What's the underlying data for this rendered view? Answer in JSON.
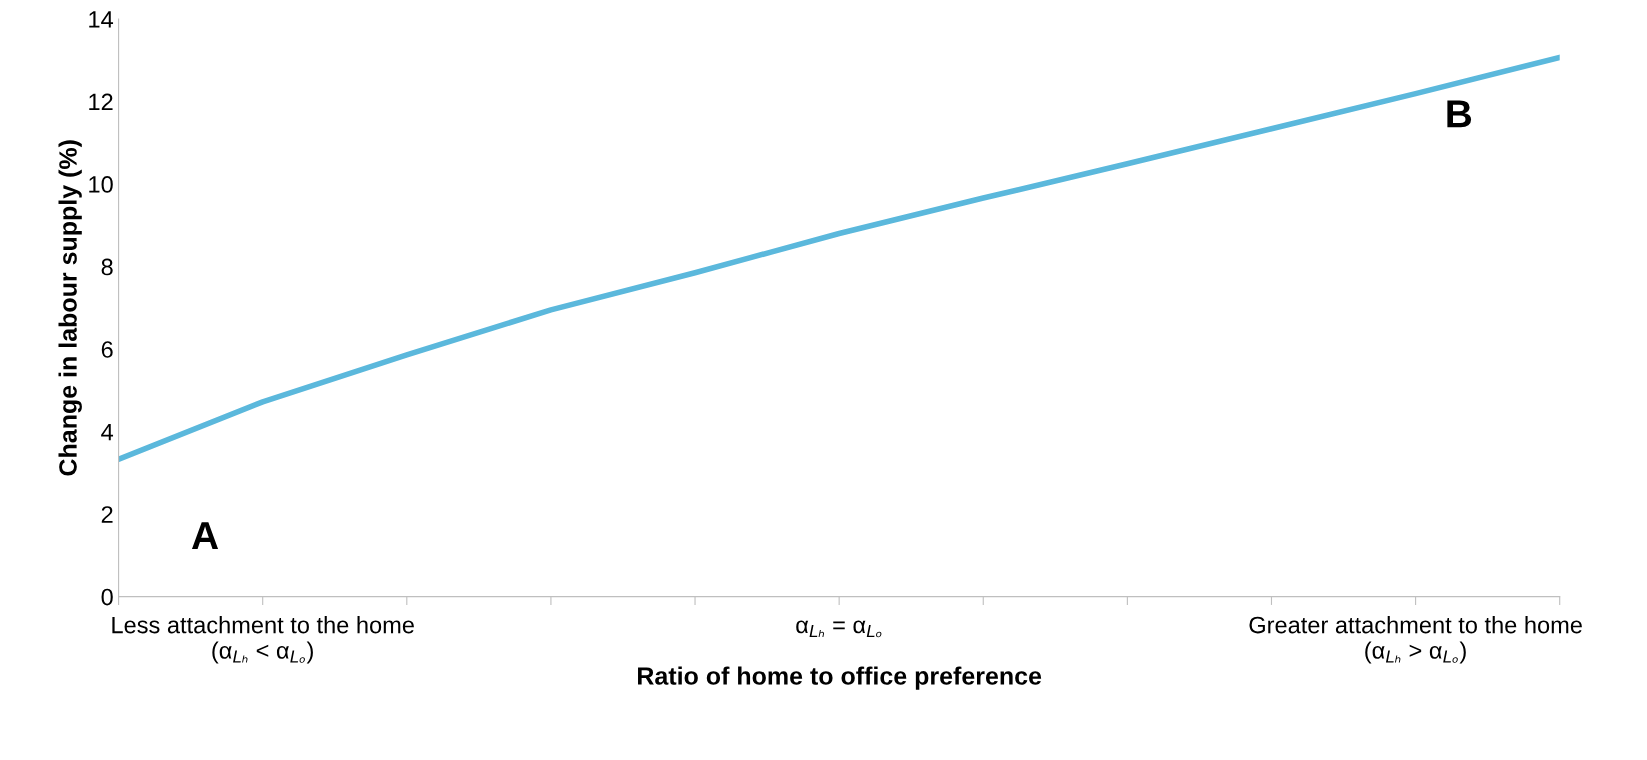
{
  "chart_data": {
    "type": "line",
    "xlabel": "Ratio of home to office preference",
    "ylabel": "Change in labour supply (%)",
    "categories": [
      null,
      "Less attachment to the home\n(α$_{Lₕ}$ < α$_{Lₒ}$)",
      null,
      null,
      null,
      "α$_{Lₕ}$ = α$_{Lₒ}$",
      null,
      null,
      null,
      "Greater attachment to the home\n(α$_{Lₕ}$ > α$_{Lₒ}$)",
      null
    ],
    "series": [
      {
        "color": "#5bb8dc",
        "values": [
          3.33,
          4.72,
          5.86,
          6.95,
          7.85,
          8.8,
          9.66,
          10.49,
          11.34,
          12.19,
          13.07
        ]
      }
    ],
    "ylim": [
      0,
      14
    ],
    "yticks": [
      0,
      2,
      4,
      6,
      8,
      10,
      12,
      14
    ],
    "grid": false,
    "marker": "none",
    "line_style": "solid",
    "annotations": [
      "A",
      "B"
    ]
  }
}
